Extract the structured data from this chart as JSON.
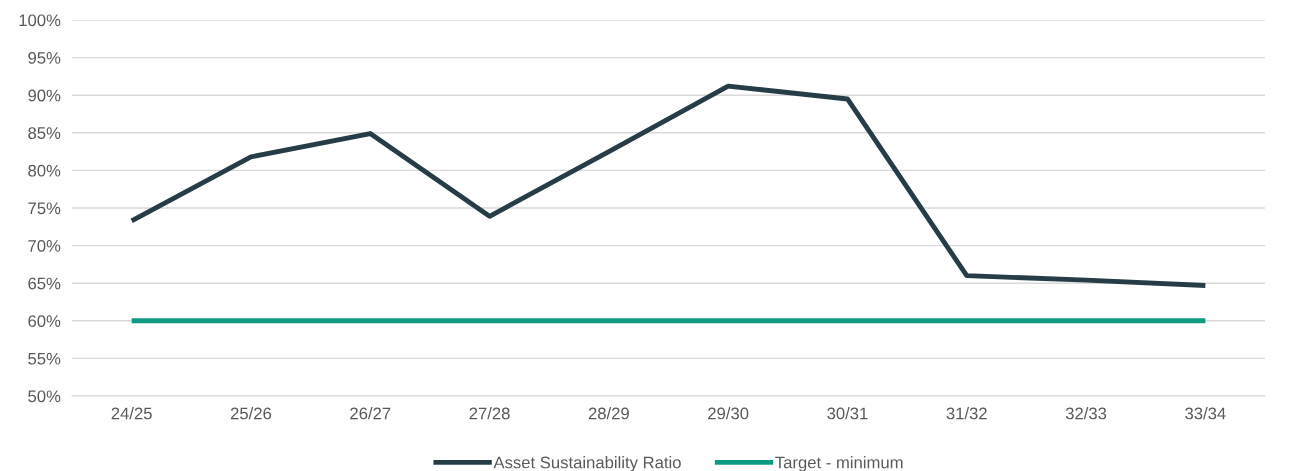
{
  "chart_data": {
    "type": "line",
    "categories": [
      "24/25",
      "25/26",
      "26/27",
      "27/28",
      "28/29",
      "29/30",
      "30/31",
      "31/32",
      "32/33",
      "33/34"
    ],
    "series": [
      {
        "name": "Asset Sustainability Ratio",
        "color": "#263d47",
        "values": [
          73.3,
          81.8,
          84.9,
          73.9,
          82.5,
          91.2,
          89.5,
          66.0,
          65.4,
          64.7
        ]
      },
      {
        "name": "Target - minimum",
        "color": "#0e9a82",
        "values": [
          60,
          60,
          60,
          60,
          60,
          60,
          60,
          60,
          60,
          60
        ]
      }
    ],
    "ylim": [
      50,
      100
    ],
    "yticks": [
      {
        "value": 50,
        "label": "50%"
      },
      {
        "value": 55,
        "label": "55%"
      },
      {
        "value": 60,
        "label": "60%"
      },
      {
        "value": 65,
        "label": "65%"
      },
      {
        "value": 70,
        "label": "70%"
      },
      {
        "value": 75,
        "label": "75%"
      },
      {
        "value": 80,
        "label": "80%"
      },
      {
        "value": 85,
        "label": "85%"
      },
      {
        "value": 90,
        "label": "90%"
      },
      {
        "value": 95,
        "label": "95%"
      },
      {
        "value": 100,
        "label": "100%"
      }
    ],
    "grid": "y",
    "legend": "bottom",
    "marker": "none",
    "line_style": "solid"
  }
}
